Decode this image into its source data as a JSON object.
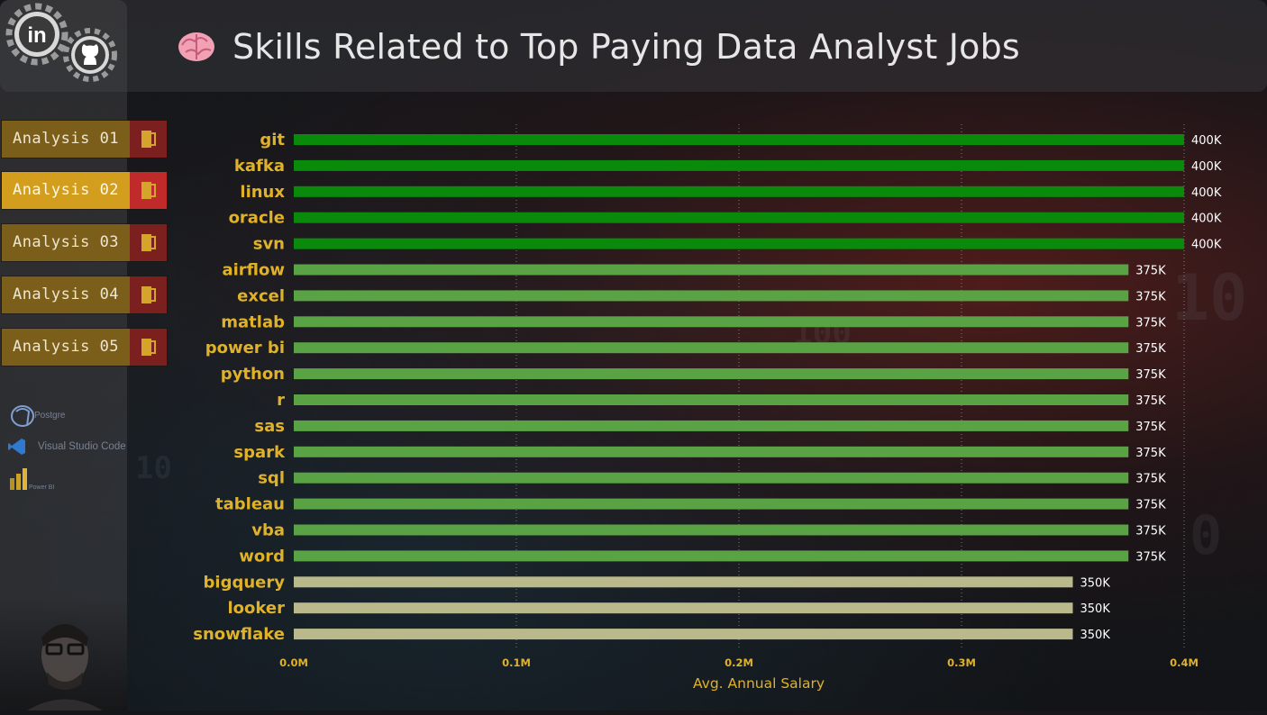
{
  "header": {
    "title": "Skills Related to Top Paying Data Analyst Jobs"
  },
  "social": {
    "linkedin_icon": "linkedin-icon",
    "github_icon": "github-icon"
  },
  "nav": {
    "items": [
      {
        "label": "Analysis 01",
        "active": false
      },
      {
        "label": "Analysis 02",
        "active": true
      },
      {
        "label": "Analysis 03",
        "active": false
      },
      {
        "label": "Analysis 04",
        "active": false
      },
      {
        "label": "Analysis 05",
        "active": false
      }
    ]
  },
  "tools": [
    {
      "label": "Postgre",
      "icon": "postgresql-icon"
    },
    {
      "label": "Visual Studio Code",
      "icon": "vscode-icon"
    },
    {
      "label": "Power BI",
      "icon": "powerbi-icon"
    }
  ],
  "colors": {
    "accent": "#e0b22a",
    "bar_400k": "#0a8a0a",
    "bar_375k": "#5aa344",
    "bar_350k": "#b9b98c",
    "active_nav": "#d39e1e",
    "nav": "#7a5e1a",
    "nav_icon": "#7c1f1f"
  },
  "chart_data": {
    "type": "bar",
    "orientation": "horizontal",
    "categories": [
      "git",
      "kafka",
      "linux",
      "oracle",
      "svn",
      "airflow",
      "excel",
      "matlab",
      "power bi",
      "python",
      "r",
      "sas",
      "spark",
      "sql",
      "tableau",
      "vba",
      "word",
      "bigquery",
      "looker",
      "snowflake"
    ],
    "values": [
      400000,
      400000,
      400000,
      400000,
      400000,
      375000,
      375000,
      375000,
      375000,
      375000,
      375000,
      375000,
      375000,
      375000,
      375000,
      375000,
      375000,
      350000,
      350000,
      350000
    ],
    "data_labels": [
      "400K",
      "400K",
      "400K",
      "400K",
      "400K",
      "375K",
      "375K",
      "375K",
      "375K",
      "375K",
      "375K",
      "375K",
      "375K",
      "375K",
      "375K",
      "375K",
      "375K",
      "350K",
      "350K",
      "350K"
    ],
    "xlabel": "Avg. Annual Salary",
    "ylabel": "",
    "xlim": [
      0,
      400000
    ],
    "xticks": [
      0,
      100000,
      200000,
      300000,
      400000
    ],
    "xtick_labels": [
      "0.0M",
      "0.1M",
      "0.2M",
      "0.3M",
      "0.4M"
    ],
    "grid": "vertical dotted"
  }
}
